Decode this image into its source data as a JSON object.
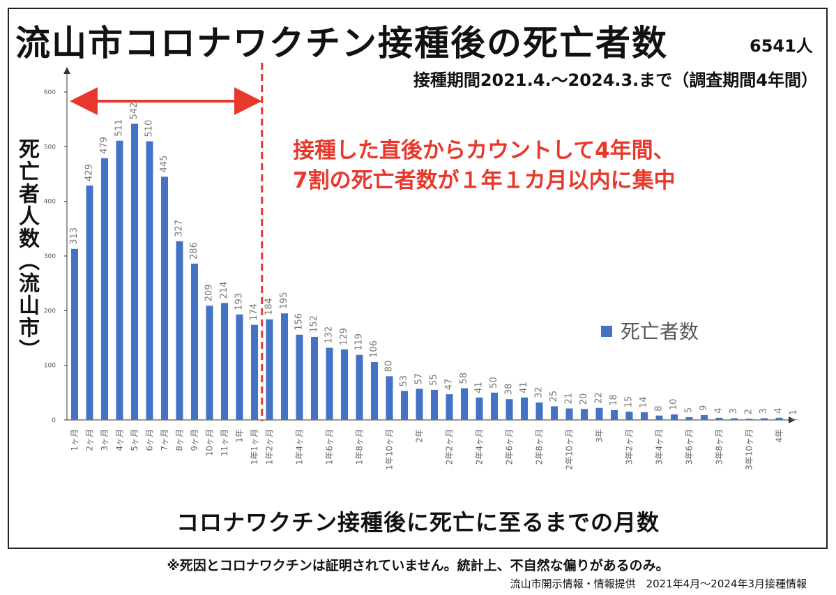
{
  "title": "流山市コロナワクチン接種後の死亡者数",
  "total": "6541人",
  "period": "接種期間2021.4.～2024.3.まで（調査期間4年間）",
  "annotation": {
    "line1": "接種した直後からカウントして4年間、",
    "line2": "7割の死亡者数が１年１カ月以内に集中"
  },
  "note": "※死因とコロナワクチンは証明されていません。統計上、不自然な偏りがあるのみ。",
  "source": "流山市開示情報・情報提供　2021年4月～2024年3月接種情報",
  "colors": {
    "bar": "#4472c4",
    "annotation": "#e8382b"
  },
  "chart_data": {
    "type": "bar",
    "xlabel": "コロナワクチン接種後に死亡に至るまでの月数",
    "ylabel": "死亡者人数（流山市）",
    "ylim": [
      0,
      600
    ],
    "yticks": [
      0,
      100,
      200,
      300,
      400,
      500,
      600
    ],
    "legend": {
      "label": "死亡者数",
      "position": "right"
    },
    "grid": false,
    "categories": [
      "1ヶ月",
      "2ヶ月",
      "3ヶ月",
      "4ヶ月",
      "5ヶ月",
      "6ヶ月",
      "7ヶ月",
      "8ヶ月",
      "9ヶ月",
      "10ヶ月",
      "11ヶ月",
      "1年",
      "1年1ヶ月",
      "1年2ヶ月",
      "",
      "1年4ヶ月",
      "",
      "1年6ヶ月",
      "",
      "1年8ヶ月",
      "",
      "1年10ヶ月",
      "",
      "2年",
      "",
      "2年2ヶ月",
      "",
      "2年4ヶ月",
      "",
      "2年6ヶ月",
      "",
      "2年8ヶ月",
      "",
      "2年10ヶ月",
      "",
      "3年",
      "",
      "3年2ヶ月",
      "",
      "3年4ヶ月",
      "",
      "3年6ヶ月",
      "",
      "3年8ヶ月",
      "",
      "3年10ヶ月",
      "",
      "4年",
      ""
    ],
    "values": [
      313,
      429,
      479,
      511,
      542,
      510,
      445,
      327,
      286,
      209,
      214,
      193,
      174,
      184,
      195,
      156,
      152,
      132,
      129,
      119,
      106,
      80,
      53,
      57,
      55,
      47,
      58,
      41,
      50,
      38,
      41,
      32,
      25,
      21,
      20,
      22,
      18,
      15,
      14,
      8,
      10,
      5,
      9,
      4,
      3,
      2,
      3,
      4,
      1
    ],
    "series": [
      {
        "name": "死亡者数"
      }
    ],
    "highlight_span": {
      "from": "1ヶ月",
      "to": "1年1ヶ月"
    }
  }
}
